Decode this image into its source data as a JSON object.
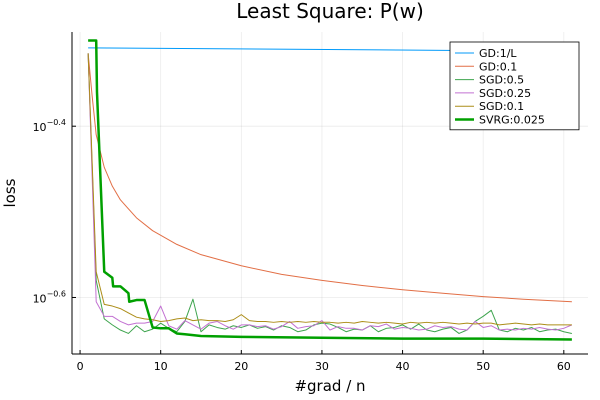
{
  "chart_data": {
    "type": "line",
    "title": "Least Square: P(w)",
    "xlabel": "#grad / n",
    "ylabel": "loss",
    "y_scale": "log10",
    "xlim": [
      -1,
      63
    ],
    "ylim_log10": [
      -0.666,
      -0.29
    ],
    "x_ticks": [
      0,
      10,
      20,
      30,
      40,
      50,
      60
    ],
    "x_tick_labels": [
      "0",
      "10",
      "20",
      "30",
      "40",
      "50",
      "60"
    ],
    "y_ticks_log10": [
      -0.6,
      -0.4
    ],
    "y_tick_labels": [
      {
        "base": "10",
        "exp": "−0.6"
      },
      {
        "base": "10",
        "exp": "−0.4"
      }
    ],
    "grid": true,
    "legend_position": "top-right",
    "series": [
      {
        "name": "GD:1/L",
        "color": "#009AFA",
        "width": 1,
        "x": [
          1,
          61
        ],
        "y_log10": [
          -0.3085,
          -0.3125
        ]
      },
      {
        "name": "GD:0.1",
        "color": "#E26F46",
        "width": 1,
        "x": [
          1,
          1.5,
          2,
          3,
          4,
          5,
          7,
          9,
          12,
          15,
          20,
          25,
          30,
          35,
          40,
          45,
          50,
          55,
          61
        ],
        "y_log10": [
          -0.315,
          -0.365,
          -0.41,
          -0.448,
          -0.47,
          -0.486,
          -0.507,
          -0.522,
          -0.538,
          -0.55,
          -0.563,
          -0.573,
          -0.58,
          -0.586,
          -0.591,
          -0.595,
          -0.599,
          -0.602,
          -0.605
        ]
      },
      {
        "name": "SGD:0.5",
        "color": "#3EA44E",
        "width": 1,
        "x": [
          1,
          2,
          3,
          4,
          5,
          6,
          7,
          8,
          9,
          10,
          11,
          12,
          13,
          14,
          15,
          16,
          17,
          18,
          19,
          20,
          21,
          22,
          23,
          24,
          25,
          26,
          27,
          28,
          29,
          30,
          31,
          32,
          33,
          34,
          35,
          36,
          37,
          38,
          39,
          40,
          41,
          42,
          43,
          44,
          45,
          46,
          47,
          48,
          49,
          50,
          51,
          52,
          53,
          54,
          55,
          56,
          57,
          58,
          59,
          60,
          61
        ],
        "y_log10": [
          -0.315,
          -0.58,
          -0.625,
          -0.632,
          -0.638,
          -0.642,
          -0.633,
          -0.64,
          -0.637,
          -0.63,
          -0.636,
          -0.64,
          -0.628,
          -0.602,
          -0.64,
          -0.632,
          -0.635,
          -0.637,
          -0.633,
          -0.635,
          -0.632,
          -0.636,
          -0.634,
          -0.638,
          -0.633,
          -0.635,
          -0.64,
          -0.638,
          -0.632,
          -0.63,
          -0.631,
          -0.635,
          -0.64,
          -0.637,
          -0.638,
          -0.633,
          -0.64,
          -0.636,
          -0.635,
          -0.632,
          -0.637,
          -0.631,
          -0.638,
          -0.64,
          -0.637,
          -0.635,
          -0.642,
          -0.638,
          -0.628,
          -0.622,
          -0.615,
          -0.638,
          -0.64,
          -0.636,
          -0.638,
          -0.635,
          -0.64,
          -0.638,
          -0.637,
          -0.64,
          -0.642
        ]
      },
      {
        "name": "SGD:0.25",
        "color": "#C271D2",
        "width": 1,
        "x": [
          1,
          2,
          3,
          4,
          5,
          6,
          7,
          8,
          9,
          10,
          11,
          12,
          13,
          14,
          15,
          16,
          17,
          18,
          19,
          20,
          21,
          22,
          23,
          24,
          25,
          26,
          27,
          28,
          29,
          30,
          31,
          32,
          33,
          34,
          35,
          36,
          37,
          38,
          39,
          40,
          41,
          42,
          43,
          44,
          45,
          46,
          47,
          48,
          49,
          50,
          51,
          52,
          53,
          54,
          55,
          56,
          57,
          58,
          59,
          60,
          61
        ],
        "y_log10": [
          -0.315,
          -0.605,
          -0.622,
          -0.622,
          -0.628,
          -0.632,
          -0.63,
          -0.63,
          -0.628,
          -0.61,
          -0.633,
          -0.637,
          -0.627,
          -0.632,
          -0.637,
          -0.63,
          -0.628,
          -0.633,
          -0.637,
          -0.632,
          -0.632,
          -0.634,
          -0.633,
          -0.637,
          -0.634,
          -0.628,
          -0.636,
          -0.634,
          -0.633,
          -0.627,
          -0.638,
          -0.634,
          -0.636,
          -0.636,
          -0.638,
          -0.633,
          -0.634,
          -0.631,
          -0.637,
          -0.635,
          -0.636,
          -0.638,
          -0.637,
          -0.633,
          -0.635,
          -0.634,
          -0.637,
          -0.638,
          -0.628,
          -0.635,
          -0.633,
          -0.638,
          -0.637,
          -0.638,
          -0.636,
          -0.637,
          -0.635,
          -0.637,
          -0.638,
          -0.636,
          -0.632
        ]
      },
      {
        "name": "SGD:0.1",
        "color": "#AC8D18",
        "width": 1,
        "x": [
          1,
          2,
          3,
          4,
          5,
          6,
          7,
          8,
          9,
          10,
          11,
          12,
          13,
          14,
          15,
          16,
          17,
          18,
          19,
          20,
          21,
          22,
          23,
          24,
          25,
          26,
          27,
          28,
          29,
          30,
          31,
          32,
          33,
          34,
          35,
          36,
          37,
          38,
          39,
          40,
          41,
          42,
          43,
          44,
          45,
          46,
          47,
          48,
          49,
          50,
          51,
          52,
          53,
          54,
          55,
          56,
          57,
          58,
          59,
          60,
          61
        ],
        "y_log10": [
          -0.315,
          -0.57,
          -0.608,
          -0.61,
          -0.613,
          -0.618,
          -0.623,
          -0.625,
          -0.626,
          -0.628,
          -0.627,
          -0.625,
          -0.624,
          -0.627,
          -0.626,
          -0.627,
          -0.627,
          -0.628,
          -0.626,
          -0.62,
          -0.627,
          -0.628,
          -0.628,
          -0.629,
          -0.628,
          -0.629,
          -0.628,
          -0.629,
          -0.628,
          -0.629,
          -0.629,
          -0.63,
          -0.629,
          -0.63,
          -0.628,
          -0.629,
          -0.63,
          -0.629,
          -0.63,
          -0.631,
          -0.629,
          -0.63,
          -0.629,
          -0.63,
          -0.629,
          -0.63,
          -0.631,
          -0.63,
          -0.631,
          -0.63,
          -0.63,
          -0.632,
          -0.631,
          -0.63,
          -0.631,
          -0.632,
          -0.631,
          -0.632,
          -0.632,
          -0.632,
          -0.632
        ]
      },
      {
        "name": "SVRG:0.025",
        "color": "#00A000",
        "width": 2.5,
        "x": [
          1,
          2,
          2.1,
          3,
          4,
          4.1,
          5,
          6,
          6.1,
          7,
          8,
          9,
          10,
          11,
          12,
          13,
          14,
          15,
          20,
          30,
          40,
          50,
          61
        ],
        "y_log10": [
          -0.3,
          -0.3,
          -0.36,
          -0.57,
          -0.577,
          -0.587,
          -0.587,
          -0.595,
          -0.605,
          -0.603,
          -0.603,
          -0.635,
          -0.636,
          -0.636,
          -0.642,
          -0.643,
          -0.644,
          -0.645,
          -0.646,
          -0.647,
          -0.648,
          -0.648,
          -0.649
        ]
      }
    ]
  }
}
